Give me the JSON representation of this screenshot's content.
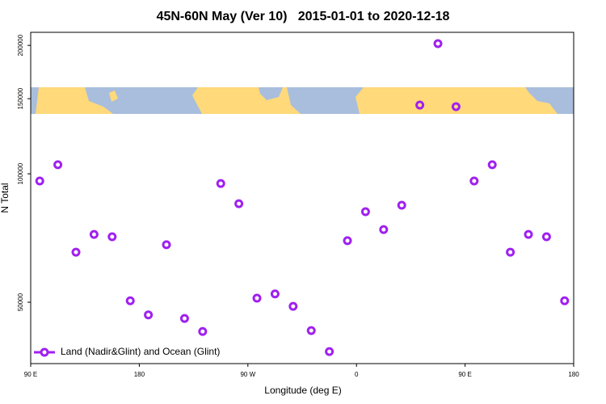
{
  "chart_data": {
    "type": "scatter",
    "title": "45N-60N May (Ver 10)   2015-01-01 to 2020-12-18",
    "x_label": "Longitude (deg E)",
    "y_label": "N Total",
    "x": [
      -262.5,
      -247.5,
      -232.5,
      -217.5,
      -202.5,
      -187.5,
      -172.5,
      -157.5,
      -142.5,
      -127.5,
      -112.5,
      -97.5,
      -82.5,
      -67.5,
      -52.5,
      -37.5,
      -22.5,
      -7.5,
      7.5,
      22.5,
      37.5,
      52.5,
      67.5,
      82.5,
      97.5,
      112.5,
      127.5,
      142.5,
      157.5,
      172.5
    ],
    "series": [
      {
        "name": "Land (Nadir&Glint) and Ocean (Glint)",
        "color": "#a020f0",
        "values": [
          96200,
          105000,
          65500,
          72100,
          71200,
          50400,
          46700,
          68200,
          45800,
          42700,
          94900,
          85100,
          51100,
          52300,
          48900,
          42900,
          38300,
          69700,
          81500,
          74000,
          84400,
          144900,
          201900,
          143700,
          96200,
          105000,
          65500,
          72100,
          71200,
          50400
        ]
      }
    ],
    "xlim": [
      -270,
      180
    ],
    "xticks": [
      {
        "value": -270,
        "label": "90 E"
      },
      {
        "value": -180,
        "label": "180"
      },
      {
        "value": -90,
        "label": "90 W"
      },
      0,
      {
        "value": 90,
        "label": "90 E"
      },
      180
    ],
    "ylim": [
      35900,
      214600
    ],
    "yticks": [
      50000,
      100000,
      150000,
      200000
    ],
    "y_log": true,
    "legend": "lower left"
  }
}
